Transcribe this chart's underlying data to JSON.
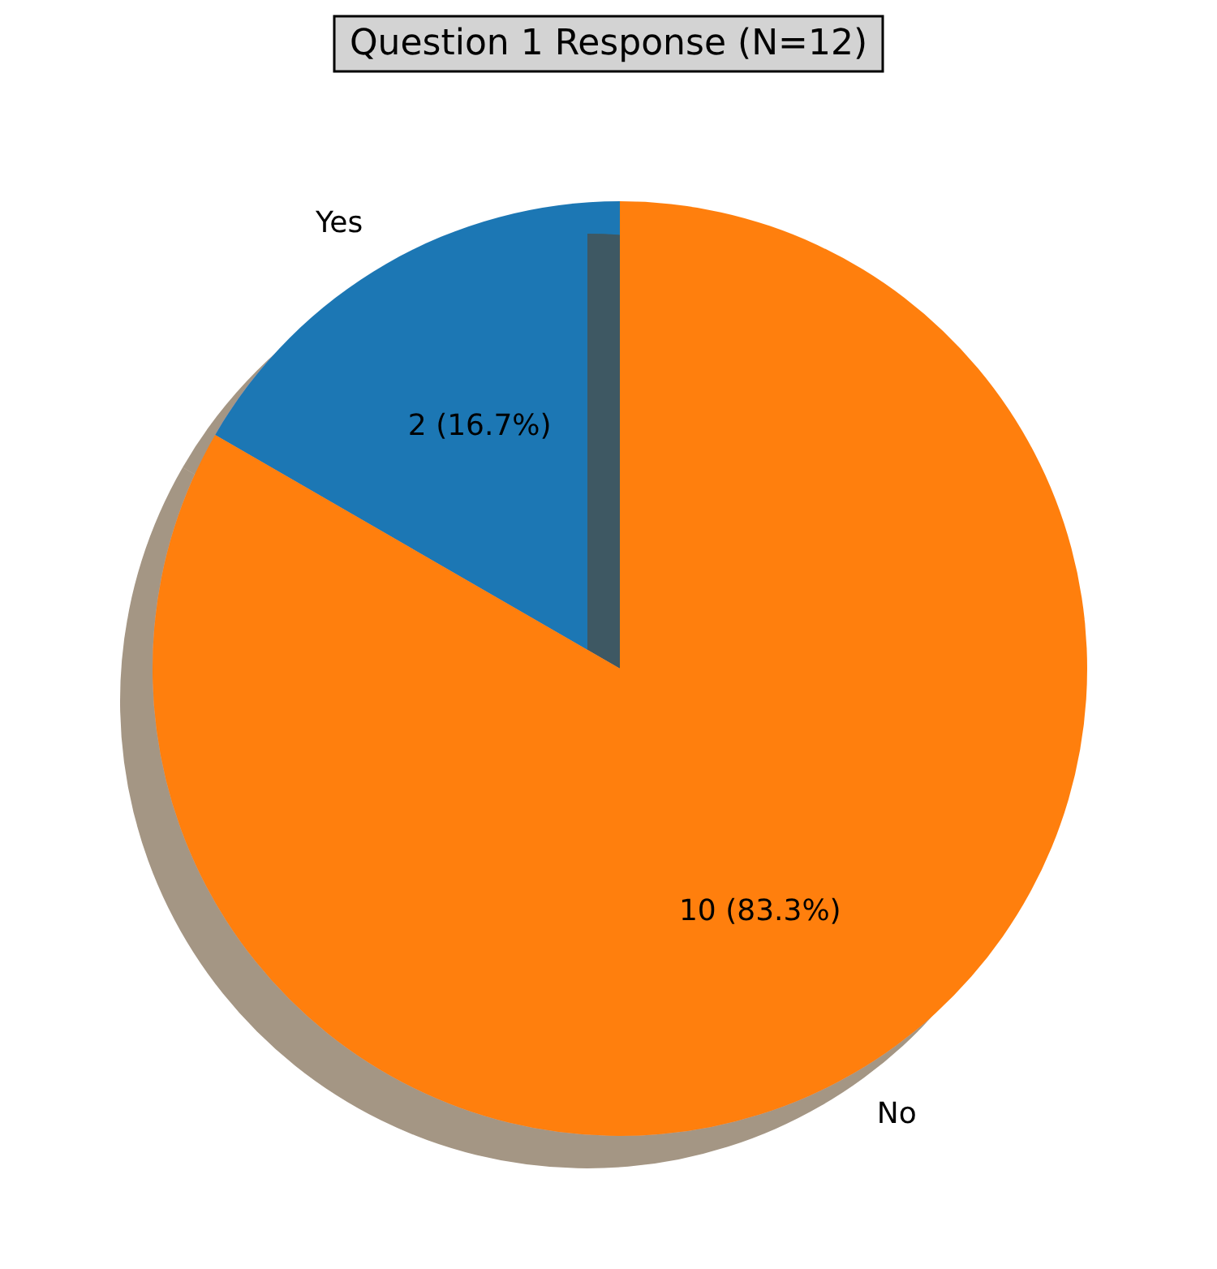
{
  "chart_data": {
    "type": "pie",
    "title": "Question 1 Response (N=12)",
    "categories": [
      "Yes",
      "No"
    ],
    "values": [
      2,
      10
    ],
    "colors": [
      "#1f77b4",
      "#ff7f0e"
    ],
    "value_labels": [
      "2 (16.7%)",
      "10 (83.3%)"
    ]
  }
}
